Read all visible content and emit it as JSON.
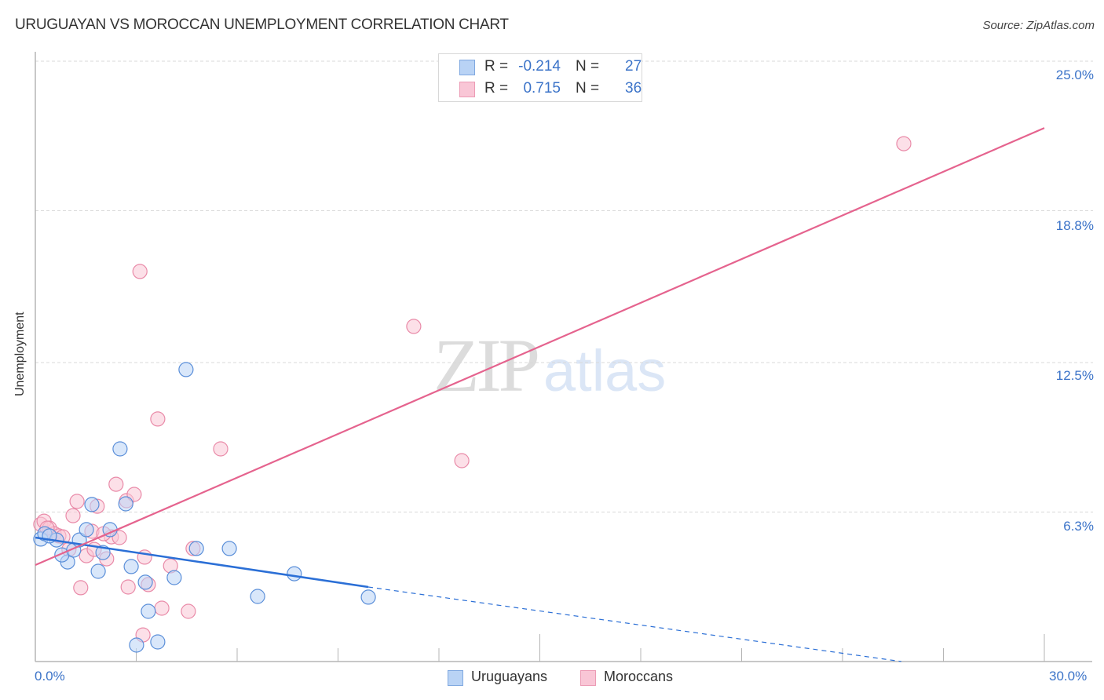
{
  "header": {
    "title": "URUGUAYAN VS MOROCCAN UNEMPLOYMENT CORRELATION CHART",
    "source": "Source: ZipAtlas.com"
  },
  "watermark": {
    "zip": "ZIP",
    "atlas": "atlas"
  },
  "colors": {
    "uruguayan_fill": "#b9d3f5",
    "uruguayan_stroke": "#5b8fd9",
    "uruguayan_line": "#2b6fd6",
    "moroccan_fill": "#f9c6d6",
    "moroccan_stroke": "#e98aa8",
    "moroccan_line": "#e5638e",
    "tick_label": "#3b73c8",
    "grid": "#d9d9d9"
  },
  "legend_top": {
    "rows": [
      {
        "series": "Uruguayans",
        "r_label": "R =",
        "r_value": "-0.214",
        "n_label": "N =",
        "n_value": "27"
      },
      {
        "series": "Moroccans",
        "r_label": "R =",
        "r_value": "0.715",
        "n_label": "N =",
        "n_value": "36"
      }
    ]
  },
  "legend_bottom": {
    "items": [
      {
        "label": "Uruguayans"
      },
      {
        "label": "Moroccans"
      }
    ]
  },
  "axes": {
    "y_label": "Unemployment",
    "y_ticks": [
      "25.0%",
      "18.8%",
      "12.5%",
      "6.3%"
    ],
    "x_ticks": [
      "0.0%",
      "30.0%"
    ]
  },
  "chart_data": {
    "type": "scatter",
    "title": "URUGUAYAN VS MOROCCAN UNEMPLOYMENT CORRELATION CHART",
    "xlabel": "",
    "ylabel": "Unemployment",
    "xlim": [
      0,
      30
    ],
    "ylim": [
      0,
      25
    ],
    "x_tick_labels": [
      "0.0%",
      "30.0%"
    ],
    "y_tick_values": [
      6.3,
      12.5,
      18.8,
      25.0
    ],
    "y_tick_labels": [
      "6.3%",
      "12.5%",
      "18.8%",
      "25.0%"
    ],
    "grid": {
      "horizontal": true,
      "style": "dashed"
    },
    "legend_position": "top-center and bottom-center",
    "series": [
      {
        "name": "Uruguayans",
        "r": -0.214,
        "n": 27,
        "color": "#5b8fd9",
        "points": [
          [
            0.16,
            5.18
          ],
          [
            0.28,
            5.4
          ],
          [
            0.63,
            5.14
          ],
          [
            0.42,
            5.31
          ],
          [
            0.96,
            4.23
          ],
          [
            0.79,
            4.52
          ],
          [
            1.14,
            4.72
          ],
          [
            1.31,
            5.14
          ],
          [
            1.68,
            6.61
          ],
          [
            1.52,
            5.57
          ],
          [
            1.87,
            3.84
          ],
          [
            2.01,
            4.62
          ],
          [
            2.22,
            5.57
          ],
          [
            2.52,
            8.92
          ],
          [
            2.69,
            6.64
          ],
          [
            2.85,
            4.04
          ],
          [
            3.27,
            3.39
          ],
          [
            3.36,
            2.18
          ],
          [
            4.13,
            3.58
          ],
          [
            4.48,
            12.21
          ],
          [
            4.79,
            4.79
          ],
          [
            5.77,
            4.79
          ],
          [
            6.61,
            2.8
          ],
          [
            7.7,
            3.74
          ],
          [
            9.9,
            2.77
          ],
          [
            3.01,
            0.78
          ],
          [
            3.64,
            0.91
          ]
        ],
        "trend": {
          "x0": 0,
          "y0": 5.24,
          "x_solid_end": 9.9,
          "y_solid_end": 3.19,
          "x_dash_end": 25.75,
          "y_dash_end": 0.1
        }
      },
      {
        "name": "Moroccans",
        "r": 0.715,
        "n": 36,
        "color": "#e98aa8",
        "points": [
          [
            0.16,
            5.79
          ],
          [
            0.26,
            5.92
          ],
          [
            0.42,
            5.63
          ],
          [
            0.56,
            5.4
          ],
          [
            0.7,
            5.31
          ],
          [
            0.82,
            5.27
          ],
          [
            1.12,
            6.15
          ],
          [
            1.24,
            6.74
          ],
          [
            1.35,
            3.16
          ],
          [
            1.52,
            4.49
          ],
          [
            1.68,
            5.5
          ],
          [
            1.84,
            6.54
          ],
          [
            2.12,
            4.36
          ],
          [
            2.26,
            5.27
          ],
          [
            2.4,
            7.45
          ],
          [
            2.5,
            5.24
          ],
          [
            2.71,
            6.77
          ],
          [
            2.76,
            3.19
          ],
          [
            2.94,
            7.03
          ],
          [
            3.11,
            16.28
          ],
          [
            3.2,
            1.2
          ],
          [
            3.25,
            4.43
          ],
          [
            3.36,
            3.29
          ],
          [
            3.64,
            10.16
          ],
          [
            3.76,
            2.31
          ],
          [
            4.02,
            4.07
          ],
          [
            4.55,
            2.18
          ],
          [
            4.69,
            4.79
          ],
          [
            5.51,
            8.92
          ],
          [
            11.25,
            14.0
          ],
          [
            12.68,
            8.43
          ],
          [
            25.82,
            21.58
          ],
          [
            0.35,
            5.63
          ],
          [
            2.03,
            5.4
          ],
          [
            1.0,
            4.75
          ],
          [
            1.75,
            4.75
          ]
        ],
        "trend": {
          "x0": 0,
          "y0": 4.1,
          "x1": 30,
          "y1": 22.23
        }
      }
    ]
  }
}
